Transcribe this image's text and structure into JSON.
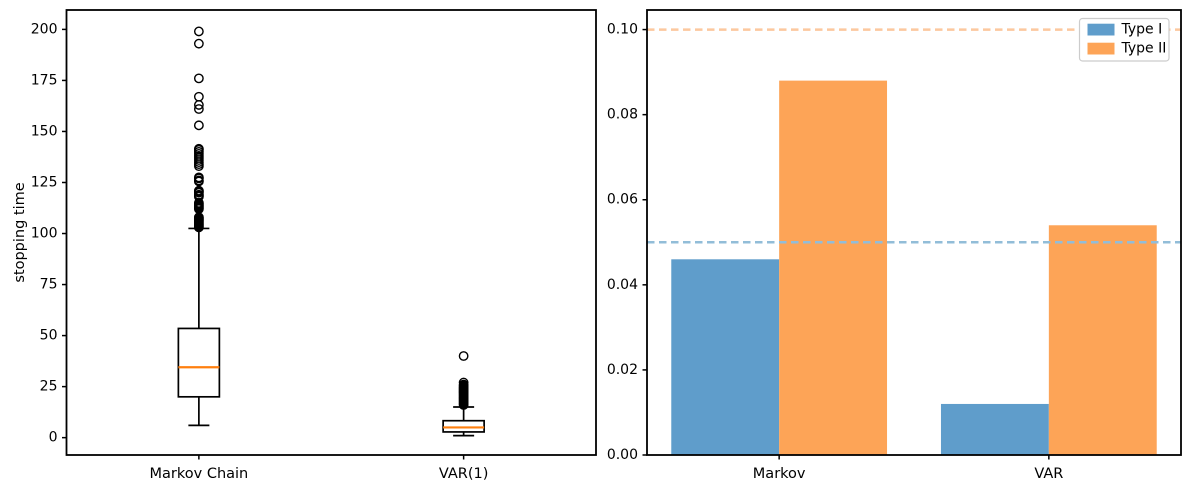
{
  "figure": {
    "background": "#ffffff"
  },
  "chart_data": [
    {
      "type": "boxplot",
      "title": "",
      "xlabel": "",
      "ylabel": "stopping time",
      "categories": [
        "Markov Chain",
        "VAR(1)"
      ],
      "ylim": [
        -8.5,
        209.5
      ],
      "yticks": [
        0,
        25,
        50,
        75,
        100,
        125,
        150,
        175,
        200
      ],
      "yticklabels": [
        "0",
        "25",
        "50",
        "75",
        "100",
        "125",
        "150",
        "175",
        "200"
      ],
      "grid": false,
      "box_edge_color": "#000000",
      "median_color": "#ff7f0e",
      "series": [
        {
          "name": "Markov Chain",
          "whislo": 6,
          "q1": 20,
          "med": 34.5,
          "q3": 53.5,
          "whishi": 102.5,
          "outliers": [
            199,
            193,
            176,
            167,
            163,
            161,
            153,
            141.5,
            141,
            140,
            139,
            138,
            137,
            136,
            135,
            134,
            133,
            127.5,
            127,
            126,
            125.5,
            121,
            120.5,
            120,
            119,
            118.5,
            118,
            115,
            114.5,
            114,
            113.5,
            113,
            112.5,
            112,
            108,
            107.5,
            107,
            106.5,
            106,
            105.5,
            105,
            104.5,
            104,
            103.5,
            103
          ]
        },
        {
          "name": "VAR(1)",
          "whislo": 1,
          "q1": 2.8,
          "med": 5,
          "q3": 8.3,
          "whishi": 15,
          "outliers": [
            40,
            27,
            26,
            25.5,
            25,
            24.5,
            24,
            23.5,
            23,
            22.5,
            22,
            21.5,
            21,
            20.5,
            20,
            19.5,
            19,
            18.5,
            18,
            17.5,
            17,
            16.5,
            16
          ]
        }
      ]
    },
    {
      "type": "bar",
      "title": "",
      "xlabel": "",
      "ylabel": "",
      "categories": [
        "Markov",
        "VAR"
      ],
      "ylim": [
        0,
        0.1046
      ],
      "yticks": [
        0,
        0.02,
        0.04,
        0.06,
        0.08,
        0.1
      ],
      "yticklabels": [
        "0.00",
        "0.02",
        "0.04",
        "0.06",
        "0.08",
        "0.10"
      ],
      "grid": false,
      "legend_position": "upper right",
      "series": [
        {
          "name": "Type I",
          "color": "#5f9dcb",
          "values": [
            0.046,
            0.012
          ]
        },
        {
          "name": "Type II",
          "color": "#fda457",
          "values": [
            0.088,
            0.054
          ]
        }
      ],
      "hlines": [
        {
          "label": "Type I level",
          "y": 0.05,
          "color": "#92bdd8",
          "style": "dashed"
        },
        {
          "label": "Type II level",
          "y": 0.1,
          "color": "#fcc89e",
          "style": "dashed"
        }
      ],
      "legend": {
        "entries": [
          "Type I",
          "Type II"
        ],
        "border_color": "#cccccc"
      }
    }
  ]
}
